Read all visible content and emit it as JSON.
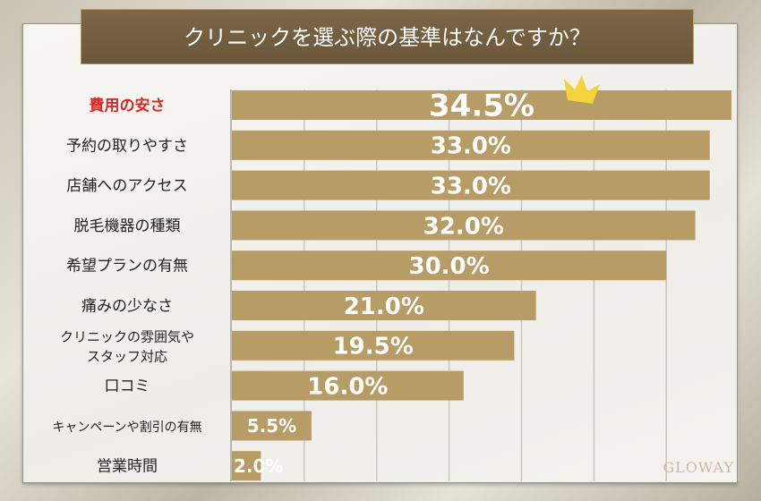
{
  "chart_data": {
    "type": "bar",
    "orientation": "horizontal",
    "title": "クリニックを選ぶ際の基準はなんですか？",
    "categories": [
      "費用の安さ",
      "予約の取りやすさ",
      "店舗へのアクセス",
      "脱毛機器の種類",
      "希望プランの有無",
      "痛みの少なさ",
      "クリニックの雰囲気や\nスタッフ対応",
      "口コミ",
      "キャンペーンや割引の有無",
      "営業時間"
    ],
    "values": [
      34.5,
      33.0,
      33.0,
      32.0,
      30.0,
      21.0,
      19.5,
      16.0,
      5.5,
      2.0
    ],
    "value_labels": [
      "34.5%",
      "33.0%",
      "33.0%",
      "32.0%",
      "30.0%",
      "21.0%",
      "19.5%",
      "16.0%",
      "5.5%",
      "2.0%"
    ],
    "xlim": [
      0,
      35
    ],
    "grid": true,
    "grid_step": 5,
    "colors": {
      "bar": "#b79c66",
      "highlight_label": "#d42a2a",
      "label": "#222222",
      "value": "#ffffff",
      "ribbon": "#6d5a40"
    },
    "annotation": "crown-icon"
  },
  "logo": "GLOWAY"
}
